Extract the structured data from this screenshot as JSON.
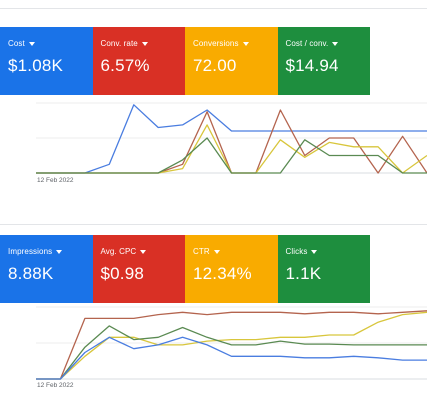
{
  "colors": {
    "blue": "#1a73e8",
    "red": "#d93025",
    "yellow": "#f9ab00",
    "green": "#1e8e3e"
  },
  "panel1": {
    "tiles": [
      {
        "label": "Cost",
        "value": "$1.08K",
        "color": "#1a73e8"
      },
      {
        "label": "Conv. rate",
        "value": "6.57%",
        "color": "#d93025"
      },
      {
        "label": "Conversions",
        "value": "72.00",
        "color": "#f9ab00"
      },
      {
        "label": "Cost / conv.",
        "value": "$14.94",
        "color": "#1e8e3e"
      }
    ],
    "date_label": "12 Feb 2022",
    "chart_data": {
      "type": "line",
      "series": [
        {
          "color": "#4a7de0",
          "values": [
            0,
            0,
            0,
            10,
            78,
            52,
            55,
            72,
            48,
            48,
            48,
            48,
            48,
            48,
            48,
            48,
            48
          ]
        },
        {
          "color": "#b4644e",
          "values": [
            0,
            0,
            0,
            0,
            0,
            0,
            10,
            70,
            0,
            0,
            72,
            20,
            40,
            40,
            0,
            42,
            0
          ]
        },
        {
          "color": "#d8c63c",
          "values": [
            0,
            0,
            0,
            0,
            0,
            0,
            5,
            55,
            0,
            0,
            38,
            18,
            35,
            30,
            30,
            0,
            20
          ]
        },
        {
          "color": "#5a8a52",
          "values": [
            0,
            0,
            0,
            0,
            0,
            0,
            15,
            40,
            0,
            0,
            0,
            38,
            20,
            20,
            20,
            0,
            0
          ]
        }
      ]
    }
  },
  "panel2": {
    "tiles": [
      {
        "label": "Impressions",
        "value": "8.88K",
        "color": "#1a73e8"
      },
      {
        "label": "Avg. CPC",
        "value": "$0.98",
        "color": "#d93025"
      },
      {
        "label": "CTR",
        "value": "12.34%",
        "color": "#f9ab00"
      },
      {
        "label": "Clicks",
        "value": "1.1K",
        "color": "#1e8e3e"
      }
    ],
    "date_label": "12 Feb 2022",
    "chart_data": {
      "type": "line",
      "series": [
        {
          "color": "#b4644e",
          "values": [
            0,
            0,
            80,
            80,
            80,
            85,
            88,
            85,
            88,
            88,
            88,
            86,
            88,
            88,
            86,
            88,
            90
          ]
        },
        {
          "color": "#d8c63c",
          "values": [
            0,
            0,
            30,
            55,
            55,
            45,
            45,
            50,
            52,
            52,
            55,
            55,
            58,
            58,
            75,
            85,
            88
          ]
        },
        {
          "color": "#5a8a52",
          "values": [
            0,
            0,
            42,
            70,
            52,
            55,
            68,
            55,
            45,
            45,
            50,
            46,
            46,
            45,
            45,
            45,
            45
          ]
        },
        {
          "color": "#4a7de0",
          "values": [
            0,
            0,
            35,
            55,
            40,
            45,
            55,
            45,
            30,
            30,
            30,
            28,
            28,
            30,
            28,
            25,
            25
          ]
        }
      ]
    }
  }
}
